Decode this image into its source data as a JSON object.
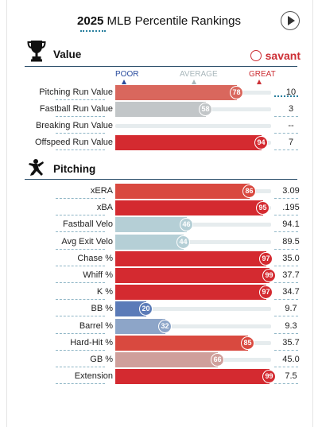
{
  "header": {
    "title_year": "2025",
    "title_rest": " MLB Percentile Rankings"
  },
  "value_section": {
    "title": "Value",
    "icon": "trophy-icon",
    "brand": "savant",
    "scale": {
      "poor": "POOR",
      "average": "AVERAGE",
      "great": "GREAT"
    },
    "rows": [
      {
        "label": "Pitching Run Value",
        "percentile": 78,
        "value": "10",
        "color": "#d9675d"
      },
      {
        "label": "Fastball Run Value",
        "percentile": 58,
        "value": "3",
        "color": "#c2c6c8"
      },
      {
        "label": "Breaking Run Value",
        "percentile": null,
        "value": "--",
        "color": ""
      },
      {
        "label": "Offspeed Run Value",
        "percentile": 94,
        "value": "7",
        "color": "#d42a30"
      }
    ]
  },
  "pitching_section": {
    "title": "Pitching",
    "icon": "pitcher-icon",
    "rows": [
      {
        "label": "xERA",
        "percentile": 86,
        "value": "3.09",
        "color": "#d9493f"
      },
      {
        "label": "xBA",
        "percentile": 95,
        "value": ".195",
        "color": "#d42a30"
      },
      {
        "label": "Fastball Velo",
        "percentile": 46,
        "value": "94.1",
        "color": "#b5cfd6"
      },
      {
        "label": "Avg Exit Velo",
        "percentile": 44,
        "value": "89.5",
        "color": "#b5cfd6"
      },
      {
        "label": "Chase %",
        "percentile": 97,
        "value": "35.0",
        "color": "#d42a30"
      },
      {
        "label": "Whiff %",
        "percentile": 99,
        "value": "37.7",
        "color": "#d42a30"
      },
      {
        "label": "K %",
        "percentile": 97,
        "value": "34.7",
        "color": "#d42a30"
      },
      {
        "label": "BB %",
        "percentile": 20,
        "value": "9.7",
        "color": "#5b7bb8"
      },
      {
        "label": "Barrel %",
        "percentile": 32,
        "value": "9.3",
        "color": "#8da5c8"
      },
      {
        "label": "Hard-Hit %",
        "percentile": 85,
        "value": "35.7",
        "color": "#d9493f"
      },
      {
        "label": "GB %",
        "percentile": 66,
        "value": "45.0",
        "color": "#cf9f9b"
      },
      {
        "label": "Extension",
        "percentile": 99,
        "value": "7.5",
        "color": "#d42a30"
      }
    ]
  }
}
